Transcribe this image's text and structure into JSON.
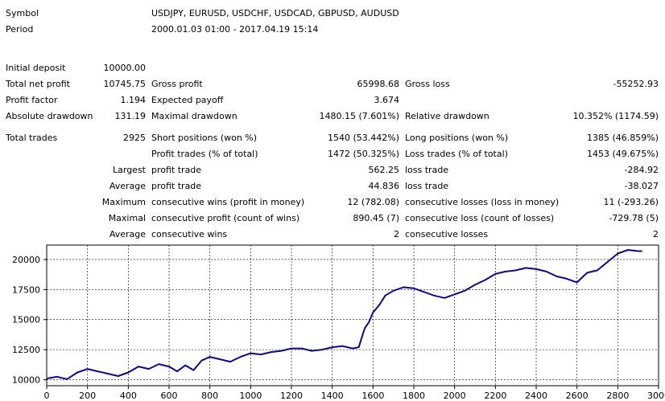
{
  "header": {
    "symbol_label": "Symbol",
    "symbol_value": "USDJPY, EURUSD, USDCHF, USDCAD, GBPUSD, AUDUSD",
    "period_label": "Period",
    "period_value": "2000.01.03 01:00 - 2017.04.19 15:14"
  },
  "stats": {
    "initial_deposit_label": "Initial deposit",
    "initial_deposit": "10000.00",
    "total_net_profit_label": "Total net profit",
    "total_net_profit": "10745.75",
    "gross_profit_label": "Gross profit",
    "gross_profit": "65998.68",
    "gross_loss_label": "Gross loss",
    "gross_loss": "-55252.93",
    "profit_factor_label": "Profit factor",
    "profit_factor": "1.194",
    "expected_payoff_label": "Expected payoff",
    "expected_payoff": "3.674",
    "absolute_drawdown_label": "Absolute drawdown",
    "absolute_drawdown": "131.19",
    "maximal_drawdown_label": "Maximal drawdown",
    "maximal_drawdown": "1480.15 (7.601%)",
    "relative_drawdown_label": "Relative drawdown",
    "relative_drawdown": "10.352% (1174.59)",
    "total_trades_label": "Total trades",
    "total_trades": "2925",
    "short_positions_label": "Short positions (won %)",
    "short_positions": "1540 (53.442%)",
    "long_positions_label": "Long positions (won %)",
    "long_positions": "1385 (46.859%)",
    "profit_trades_label": "Profit trades (% of total)",
    "profit_trades": "1472 (50.325%)",
    "loss_trades_label": "Loss trades (% of total)",
    "loss_trades": "1453 (49.675%)",
    "largest_label": "Largest",
    "largest_profit_label": "profit trade",
    "largest_profit": "562.25",
    "largest_loss_label": "loss trade",
    "largest_loss": "-284.92",
    "average_label": "Average",
    "average_profit_label": "profit trade",
    "average_profit": "44.836",
    "average_loss_label": "loss trade",
    "average_loss": "-38.027",
    "maximum_label": "Maximum",
    "max_consec_wins_label": "consecutive wins (profit in money)",
    "max_consec_wins": "12 (782.08)",
    "max_consec_losses_label": "consecutive losses (loss in money)",
    "max_consec_losses": "11 (-293.26)",
    "maximal_label": "Maximal",
    "maximal_consec_profit_label": "consecutive profit (count of wins)",
    "maximal_consec_profit": "890.45 (7)",
    "maximal_consec_loss_label": "consecutive loss (count of losses)",
    "maximal_consec_loss": "-729.78 (5)",
    "average2_label": "Average",
    "avg_consec_wins_label": "consecutive wins",
    "avg_consec_wins": "2",
    "avg_consec_losses_label": "consecutive losses",
    "avg_consec_losses": "2"
  },
  "chart_data": {
    "type": "line",
    "line_color": "#0a0a8c",
    "grid": true,
    "xlim": [
      0,
      3000
    ],
    "ylim": [
      9500,
      21200
    ],
    "x_ticks": [
      0,
      200,
      400,
      600,
      800,
      1000,
      1200,
      1400,
      1600,
      1800,
      2000,
      2200,
      2400,
      2600,
      2800,
      3000
    ],
    "y_ticks": [
      10000,
      12500,
      15000,
      17500,
      20000
    ],
    "series": [
      {
        "x": [
          0,
          50,
          100,
          150,
          200,
          250,
          300,
          350,
          400,
          450,
          500,
          550,
          600,
          640,
          680,
          720,
          760,
          800,
          850,
          900,
          950,
          1000,
          1050,
          1100,
          1150,
          1200,
          1250,
          1300,
          1350,
          1400,
          1450,
          1500,
          1530,
          1550,
          1560,
          1580,
          1600,
          1630,
          1660,
          1700,
          1750,
          1800,
          1850,
          1900,
          1950,
          2000,
          2050,
          2100,
          2150,
          2200,
          2250,
          2300,
          2350,
          2400,
          2450,
          2500,
          2550,
          2600,
          2650,
          2700,
          2750,
          2800,
          2850,
          2900,
          2920
        ],
        "y": [
          10100,
          10250,
          10050,
          10600,
          10900,
          10700,
          10500,
          10300,
          10600,
          11100,
          10900,
          11300,
          11100,
          10700,
          11200,
          10800,
          11600,
          11900,
          11700,
          11500,
          11900,
          12200,
          12100,
          12300,
          12400,
          12600,
          12600,
          12400,
          12500,
          12700,
          12800,
          12600,
          12700,
          13800,
          14300,
          14800,
          15600,
          16200,
          17000,
          17400,
          17700,
          17600,
          17300,
          17000,
          16800,
          17100,
          17400,
          17900,
          18300,
          18800,
          19000,
          19100,
          19300,
          19200,
          19000,
          18600,
          18400,
          18100,
          18900,
          19100,
          19800,
          20500,
          20800,
          20700,
          20700
        ]
      }
    ]
  }
}
